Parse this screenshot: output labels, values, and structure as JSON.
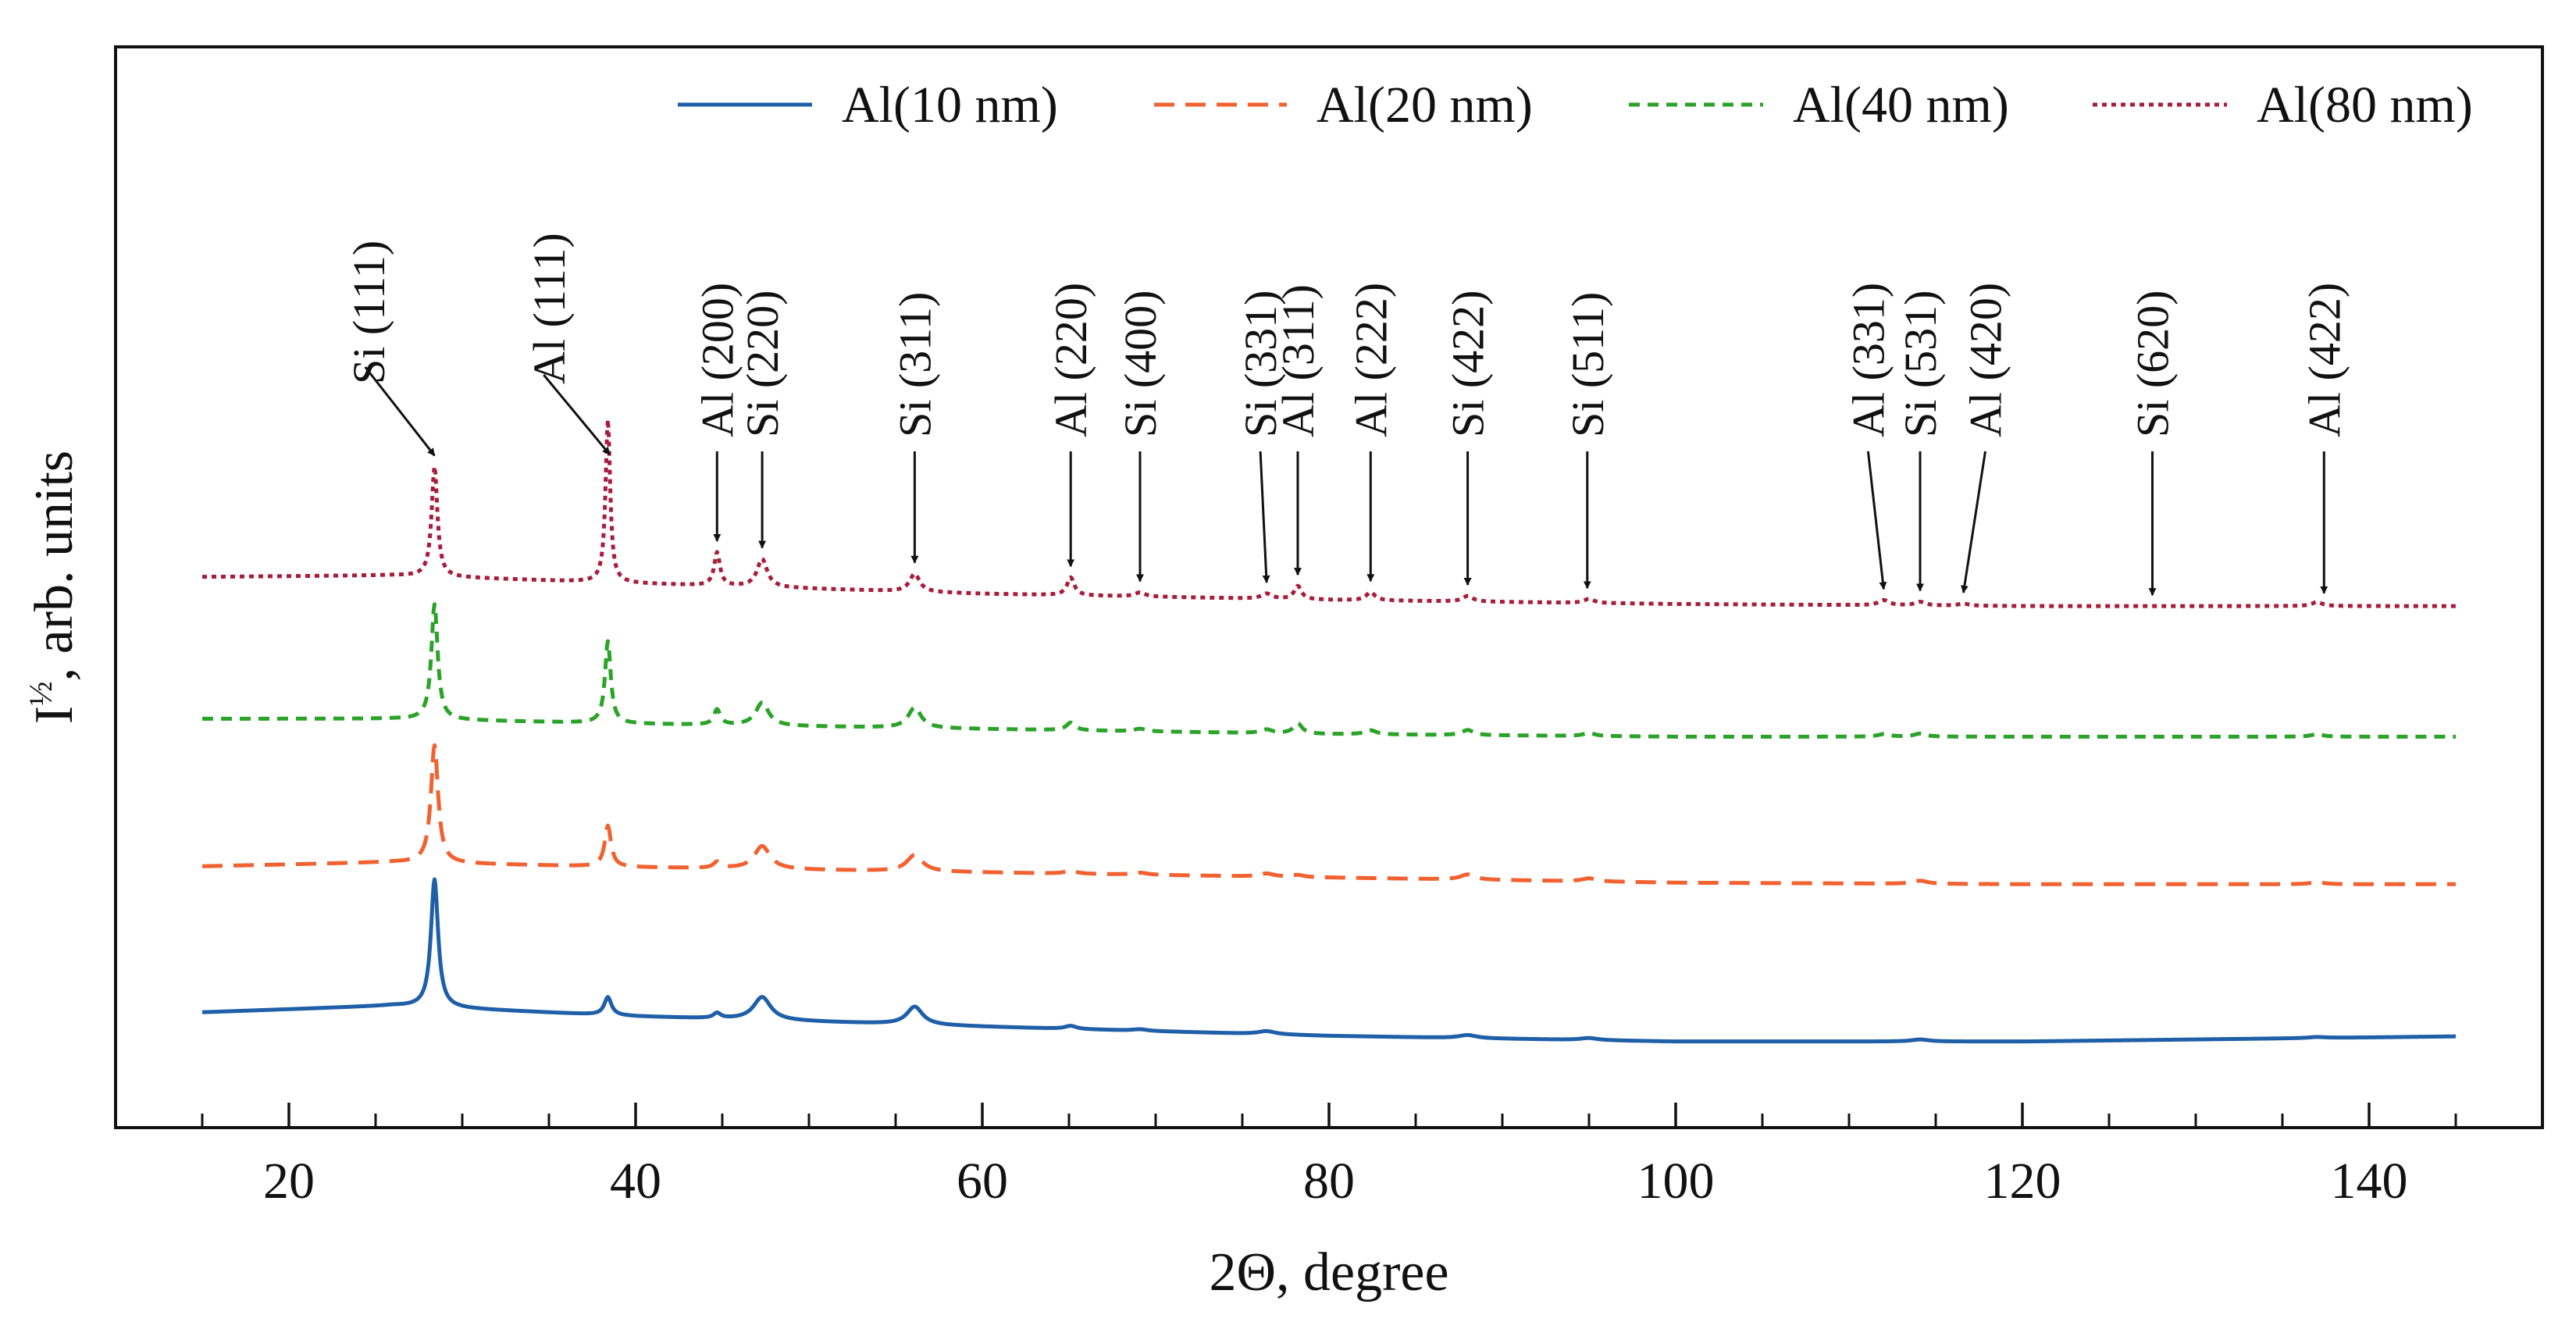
{
  "chart_data": {
    "type": "line",
    "title": "",
    "xlabel": "2Θ, degree",
    "ylabel_base": "I",
    "ylabel_sup": "½",
    "ylabel_rest": ", arb. units",
    "xlim": [
      10,
      150
    ],
    "ylim": [
      0,
      1
    ],
    "x_ticks": [
      20,
      40,
      60,
      80,
      100,
      120,
      140
    ],
    "x_minor_step": 5,
    "y_ticks_shown": false,
    "grid": false,
    "legend_position": "top-right",
    "series": [
      {
        "name": "Al(10 nm)",
        "color": "#1f5fa8",
        "dash": "solid",
        "baseline": [
          [
            15,
            0.155
          ],
          [
            26,
            0.168
          ],
          [
            40,
            0.147
          ],
          [
            60,
            0.127
          ],
          [
            80,
            0.109
          ],
          [
            100,
            0.098
          ],
          [
            120,
            0.098
          ],
          [
            145,
            0.108
          ]
        ],
        "peaks": [
          [
            28.4,
            0.25,
            0.25
          ],
          [
            38.4,
            0.035,
            0.25
          ],
          [
            44.7,
            0.01,
            0.25
          ],
          [
            47.3,
            0.045,
            0.6
          ],
          [
            56.1,
            0.035,
            0.55
          ],
          [
            65.1,
            0.006,
            0.4
          ],
          [
            69.1,
            0.003,
            0.5
          ],
          [
            76.4,
            0.006,
            0.6
          ],
          [
            88.0,
            0.006,
            0.6
          ],
          [
            95.0,
            0.004,
            0.6
          ],
          [
            114.1,
            0.004,
            0.6
          ],
          [
            137.0,
            0.002,
            0.6
          ]
        ]
      },
      {
        "name": "Al(20 nm)",
        "color": "#f26130",
        "dash": "dash",
        "baseline": [
          [
            15,
            0.44
          ],
          [
            26,
            0.448
          ],
          [
            40,
            0.438
          ],
          [
            60,
            0.428
          ],
          [
            80,
            0.418
          ],
          [
            100,
            0.408
          ],
          [
            120,
            0.405
          ],
          [
            145,
            0.405
          ]
        ],
        "peaks": [
          [
            28.4,
            0.23,
            0.25
          ],
          [
            38.4,
            0.08,
            0.22
          ],
          [
            44.7,
            0.012,
            0.25
          ],
          [
            47.3,
            0.045,
            0.55
          ],
          [
            56.1,
            0.032,
            0.55
          ],
          [
            65.1,
            0.006,
            0.4
          ],
          [
            69.1,
            0.004,
            0.5
          ],
          [
            76.4,
            0.006,
            0.5
          ],
          [
            78.2,
            0.004,
            0.4
          ],
          [
            88.0,
            0.01,
            0.5
          ],
          [
            95.0,
            0.006,
            0.5
          ],
          [
            114.1,
            0.006,
            0.5
          ],
          [
            137.0,
            0.004,
            0.5
          ]
        ]
      },
      {
        "name": "Al(40 nm)",
        "color": "#2aa328",
        "dash": "dash",
        "baseline": [
          [
            15,
            0.728
          ],
          [
            26,
            0.728
          ],
          [
            40,
            0.718
          ],
          [
            60,
            0.708
          ],
          [
            80,
            0.698
          ],
          [
            100,
            0.693
          ],
          [
            120,
            0.693
          ],
          [
            145,
            0.693
          ]
        ],
        "peaks": [
          [
            28.4,
            0.225,
            0.22
          ],
          [
            38.4,
            0.16,
            0.2
          ],
          [
            44.7,
            0.03,
            0.22
          ],
          [
            47.3,
            0.045,
            0.45
          ],
          [
            56.1,
            0.04,
            0.45
          ],
          [
            65.1,
            0.015,
            0.3
          ],
          [
            69.1,
            0.005,
            0.4
          ],
          [
            76.4,
            0.007,
            0.4
          ],
          [
            78.2,
            0.02,
            0.3
          ],
          [
            82.4,
            0.008,
            0.4
          ],
          [
            88.0,
            0.01,
            0.4
          ],
          [
            95.0,
            0.006,
            0.4
          ],
          [
            112.0,
            0.005,
            0.4
          ],
          [
            114.1,
            0.006,
            0.4
          ],
          [
            137.0,
            0.005,
            0.4
          ]
        ]
      },
      {
        "name": "Al(80 nm)",
        "color": "#a81c3c",
        "dash": "dot",
        "baseline": [
          [
            15,
            1.005
          ],
          [
            26,
            1.008
          ],
          [
            40,
            0.992
          ],
          [
            60,
            0.972
          ],
          [
            80,
            0.96
          ],
          [
            100,
            0.952
          ],
          [
            120,
            0.948
          ],
          [
            145,
            0.948
          ]
        ],
        "peaks": [
          [
            28.4,
            0.215,
            0.2
          ],
          [
            38.4,
            0.318,
            0.16
          ],
          [
            44.7,
            0.065,
            0.2
          ],
          [
            47.3,
            0.055,
            0.35
          ],
          [
            56.1,
            0.035,
            0.35
          ],
          [
            65.1,
            0.035,
            0.25
          ],
          [
            69.1,
            0.008,
            0.35
          ],
          [
            76.4,
            0.01,
            0.35
          ],
          [
            78.2,
            0.026,
            0.25
          ],
          [
            82.4,
            0.016,
            0.3
          ],
          [
            88.0,
            0.011,
            0.35
          ],
          [
            95.0,
            0.008,
            0.35
          ],
          [
            112.0,
            0.01,
            0.35
          ],
          [
            114.1,
            0.007,
            0.35
          ],
          [
            116.6,
            0.004,
            0.35
          ],
          [
            137.0,
            0.008,
            0.35
          ]
        ]
      }
    ],
    "annotations": [
      {
        "label": "Si (111)",
        "x": 28.4
      },
      {
        "label": "Al (111)",
        "x": 38.5
      },
      {
        "label": "Al (200)",
        "x": 44.7
      },
      {
        "label": "Si (220)",
        "x": 47.3
      },
      {
        "label": "Si (311)",
        "x": 56.1
      },
      {
        "label": "Al (220)",
        "x": 65.1
      },
      {
        "label": "Si (400)",
        "x": 69.1
      },
      {
        "label": "Si (331)",
        "x": 76.4
      },
      {
        "label": "Al (311)",
        "x": 78.2
      },
      {
        "label": "Al (222)",
        "x": 82.4
      },
      {
        "label": "Si (422)",
        "x": 88.0
      },
      {
        "label": "Si (511)",
        "x": 94.9
      },
      {
        "label": "Al (331)",
        "x": 112.0
      },
      {
        "label": "Si (531)",
        "x": 114.1
      },
      {
        "label": "Al (420)",
        "x": 116.6
      },
      {
        "label": "Si (620)",
        "x": 127.5
      },
      {
        "label": "Al (422)",
        "x": 137.4
      }
    ]
  }
}
